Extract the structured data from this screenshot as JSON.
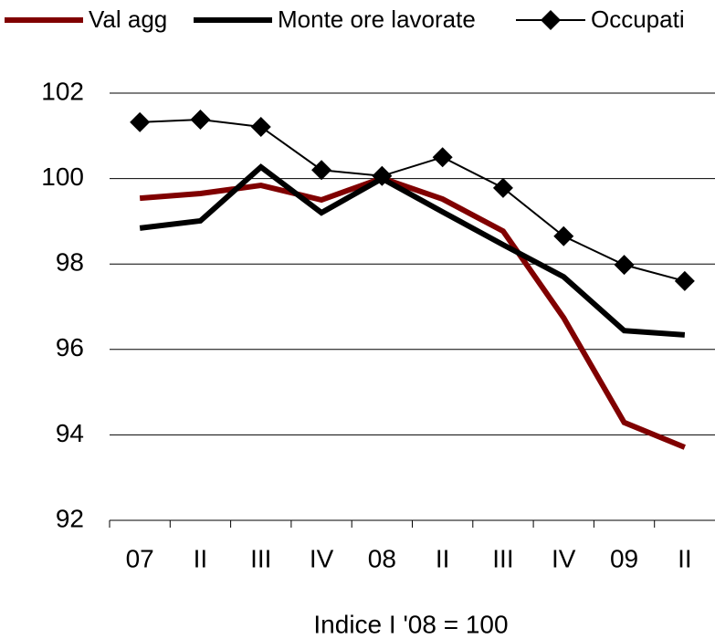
{
  "chart_data": {
    "type": "line",
    "x_label": "Indice I '08 = 100",
    "categories": [
      "07",
      "II",
      "III",
      "IV",
      "08",
      "II",
      "III",
      "IV",
      "09",
      "II"
    ],
    "series": [
      {
        "name": "Val agg",
        "color": "#800000",
        "values": [
          99.54,
          99.65,
          99.84,
          99.5,
          100.01,
          99.52,
          98.77,
          96.74,
          94.29,
          93.71
        ]
      },
      {
        "name": "Monte ore lavorate",
        "color": "#000000",
        "values": [
          98.84,
          99.01,
          100.27,
          99.2,
          100.0,
          99.22,
          98.45,
          97.7,
          96.44,
          96.34
        ]
      },
      {
        "name": "Occupati",
        "color": "#000000",
        "marker": "diamond",
        "values": [
          101.32,
          101.38,
          101.21,
          100.2,
          100.06,
          100.5,
          99.78,
          98.65,
          97.98,
          97.6
        ]
      }
    ],
    "ylim": [
      92,
      102
    ],
    "yticks": [
      92,
      94,
      96,
      98,
      100,
      102
    ],
    "grid": true,
    "legend": "top"
  }
}
